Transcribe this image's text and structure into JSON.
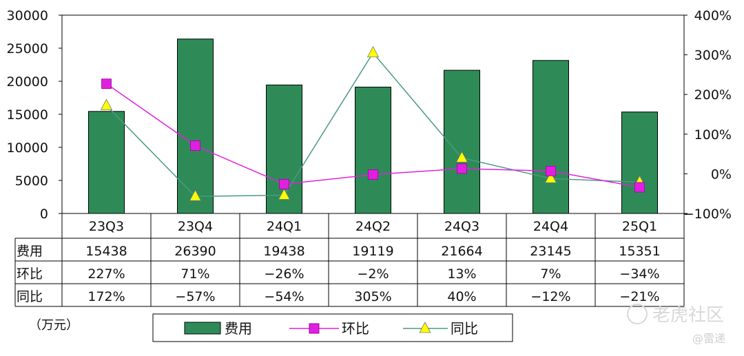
{
  "chart_data": {
    "type": "bar",
    "categories": [
      "23Q3",
      "23Q4",
      "24Q1",
      "24Q2",
      "24Q3",
      "24Q4",
      "25Q1"
    ],
    "left_axis": {
      "ylim": [
        0,
        30000
      ],
      "ticks": [
        "0",
        "5000",
        "10000",
        "15000",
        "20000",
        "25000",
        "30000"
      ]
    },
    "right_axis": {
      "ylim": [
        -100,
        400
      ],
      "ticks": [
        "−100%",
        "0%",
        "100%",
        "200%",
        "300%",
        "400%"
      ]
    },
    "series": [
      {
        "name": "费用",
        "type": "bar",
        "axis": "left",
        "color": "#2e8b57",
        "values": [
          15438,
          26390,
          19438,
          19119,
          21664,
          23145,
          15351
        ],
        "labels": [
          "15438",
          "26390",
          "19438",
          "19119",
          "21664",
          "23145",
          "15351"
        ]
      },
      {
        "name": "环比",
        "type": "line",
        "axis": "right",
        "color": "#e020e0",
        "values": [
          227,
          71,
          -26,
          -2,
          13,
          7,
          -34
        ],
        "labels": [
          "227%",
          "71%",
          "−26%",
          "−2%",
          "13%",
          "7%",
          "−34%"
        ]
      },
      {
        "name": "同比",
        "type": "line",
        "axis": "right",
        "color": "#4a9a80",
        "marker_color": "#ffff00",
        "values": [
          172,
          -57,
          -54,
          305,
          40,
          -12,
          -21
        ],
        "labels": [
          "172%",
          "−57%",
          "−54%",
          "305%",
          "40%",
          "−12%",
          "−21%"
        ]
      }
    ],
    "unit_label": "（万元）",
    "legend_position": "bottom"
  },
  "watermark": {
    "text": "老虎社区",
    "sub": "@雷递"
  }
}
